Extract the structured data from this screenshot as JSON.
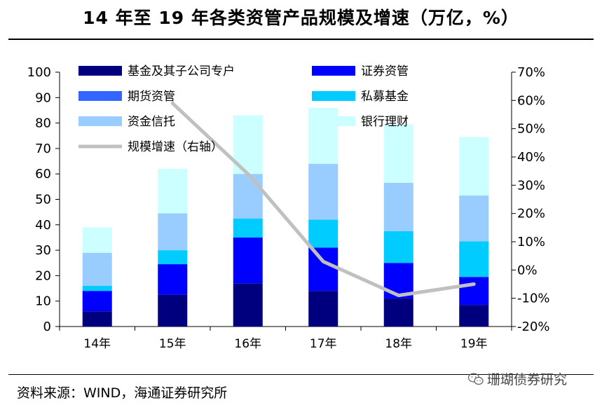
{
  "title": "14 年至 19 年各类资管产品规模及增速（万亿，%）",
  "source": "资料来源：WIND，海通证券研究所",
  "watermark": "珊瑚债券研究",
  "chart_data": {
    "type": "bar",
    "stacked": true,
    "categories": [
      "14年",
      "15年",
      "16年",
      "17年",
      "18年",
      "19年"
    ],
    "series": [
      {
        "name": "基金及其子公司专户",
        "color": "#00007f",
        "values": [
          6,
          12.5,
          17,
          14,
          11,
          8.5
        ]
      },
      {
        "name": "证券资管",
        "color": "#0000ff",
        "values": [
          8,
          12,
          18,
          17,
          14,
          11
        ]
      },
      {
        "name": "期货资管",
        "color": "#3366ff",
        "values": [
          0,
          0,
          0,
          0,
          0,
          0
        ]
      },
      {
        "name": "私募基金",
        "color": "#00ccff",
        "values": [
          2,
          5.5,
          7.5,
          11,
          12.5,
          14
        ]
      },
      {
        "name": "资金信托",
        "color": "#99ccff",
        "values": [
          13,
          14.5,
          17.5,
          22,
          19,
          18
        ]
      },
      {
        "name": "银行理财",
        "color": "#ccffff",
        "values": [
          10,
          17.5,
          23,
          22,
          23,
          23
        ]
      }
    ],
    "line": {
      "name": "规模增速（右轴）",
      "color": "#c0c0c0",
      "categories": [
        "15年",
        "16年",
        "17年",
        "18年",
        "19年"
      ],
      "values": [
        59,
        34,
        3,
        -9,
        -5
      ]
    },
    "y_left": {
      "min": 0,
      "max": 100,
      "step": 10
    },
    "y_right": {
      "min": -20,
      "max": 70,
      "step": 10,
      "suffix": "%"
    },
    "legend_position": "top, inside plot, two columns"
  }
}
